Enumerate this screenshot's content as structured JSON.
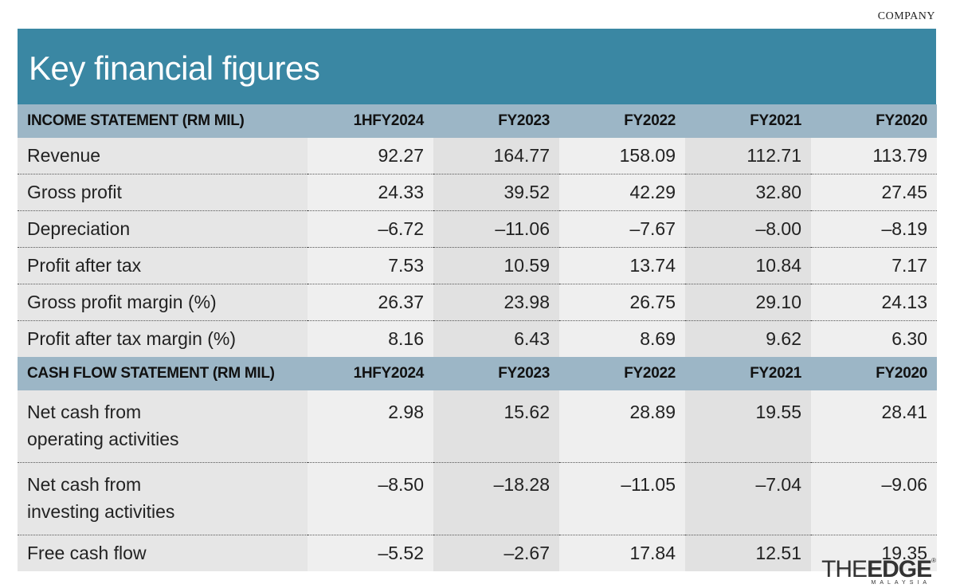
{
  "section": "COMPANY",
  "title": "Key financial figures",
  "income": {
    "header": [
      "INCOME STATEMENT (RM MIL)",
      "1HFY2024",
      "FY2023",
      "FY2022",
      "FY2021",
      "FY2020"
    ],
    "rows": [
      {
        "label": "Revenue",
        "values": [
          "92.27",
          "164.77",
          "158.09",
          "112.71",
          "113.79"
        ]
      },
      {
        "label": "Gross profit",
        "values": [
          "24.33",
          "39.52",
          "42.29",
          "32.80",
          "27.45"
        ]
      },
      {
        "label": "Depreciation",
        "values": [
          "–6.72",
          "–11.06",
          "–7.67",
          "–8.00",
          "–8.19"
        ]
      },
      {
        "label": "Profit after tax",
        "values": [
          "7.53",
          "10.59",
          "13.74",
          "10.84",
          "7.17"
        ]
      },
      {
        "label": "Gross profit margin (%)",
        "values": [
          "26.37",
          "23.98",
          "26.75",
          "29.10",
          "24.13"
        ]
      },
      {
        "label": "Profit after tax margin (%)",
        "values": [
          "8.16",
          "6.43",
          "8.69",
          "9.62",
          "6.30"
        ]
      }
    ]
  },
  "cashflow": {
    "header": [
      "CASH FLOW STATEMENT (RM MIL)",
      "1HFY2024",
      "FY2023",
      "FY2022",
      "FY2021",
      "FY2020"
    ],
    "rows": [
      {
        "label_line1": "Net cash from",
        "label_line2": "operating activities",
        "values": [
          "2.98",
          "15.62",
          "28.89",
          "19.55",
          "28.41"
        ]
      },
      {
        "label_line1": "Net cash from",
        "label_line2": "investing activities",
        "values": [
          "–8.50",
          "–18.28",
          "–11.05",
          "–7.04",
          "–9.06"
        ]
      },
      {
        "label": "Free cash flow",
        "values": [
          "–5.52",
          "–2.67",
          "17.84",
          "12.51",
          "19.35"
        ]
      }
    ]
  },
  "brand": {
    "logo_part1": "THE",
    "logo_part2": "EDGE",
    "tm": "®",
    "sub": "MALAYSIA"
  },
  "colors": {
    "title_bar": "#3a87a3",
    "header_row": "#9cb6c6"
  }
}
